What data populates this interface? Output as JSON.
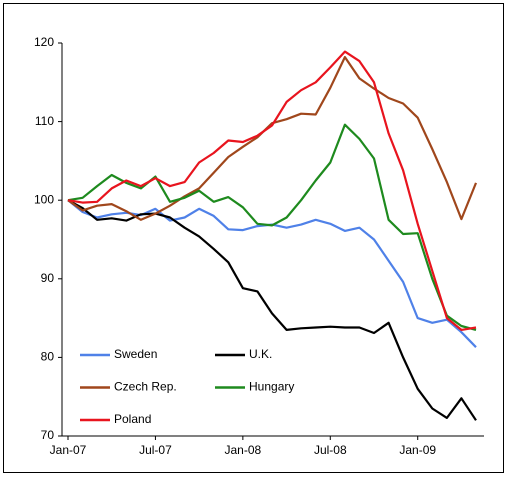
{
  "chart_data": {
    "type": "line",
    "categories": [
      "Jan-07",
      null,
      null,
      null,
      null,
      null,
      "Jul-07",
      null,
      null,
      null,
      null,
      null,
      "Jan-08",
      null,
      null,
      null,
      null,
      null,
      "Jul-08",
      null,
      null,
      null,
      null,
      null,
      "Jan-09",
      null,
      null,
      null,
      null
    ],
    "series": [
      {
        "name": "Sweden",
        "color": "#4f81e8",
        "values": [
          100,
          98.5,
          97.8,
          98.2,
          98.4,
          98.1,
          98.9,
          97.4,
          97.8,
          98.9,
          98,
          96.3,
          96.2,
          96.7,
          96.9,
          96.5,
          96.9,
          97.5,
          97,
          96.1,
          96.5,
          95,
          92.3,
          89.6,
          85,
          84.4,
          84.8,
          83.2,
          81.3
        ]
      },
      {
        "name": "U.K.",
        "color": "#000000",
        "values": [
          100,
          99,
          97.5,
          97.7,
          97.4,
          98.2,
          98.3,
          97.8,
          96.5,
          95.4,
          93.8,
          92.1,
          88.8,
          88.4,
          85.6,
          83.5,
          83.7,
          83.8,
          83.9,
          83.8,
          83.8,
          83.1,
          84.4,
          80,
          76,
          73.5,
          72.3,
          74.8,
          72
        ]
      },
      {
        "name": "Czech Rep.",
        "color": "#a0471c",
        "values": [
          100,
          98.7,
          99.3,
          99.5,
          98.6,
          97.5,
          98.3,
          99.3,
          100.5,
          101.5,
          103.5,
          105.5,
          106.8,
          108,
          109.8,
          110.3,
          111,
          110.9,
          114.3,
          118.2,
          115.5,
          114.2,
          113,
          112.3,
          110.5,
          106.5,
          102.3,
          97.6,
          102.2
        ]
      },
      {
        "name": "Hungary",
        "color": "#1e8a1e",
        "values": [
          100,
          100.3,
          101.8,
          103.2,
          102.2,
          101.5,
          103,
          99.8,
          100.3,
          101.2,
          99.8,
          100.4,
          99.1,
          97,
          96.8,
          97.8,
          100,
          102.5,
          104.8,
          109.6,
          107.8,
          105.3,
          97.5,
          95.7,
          95.8,
          90,
          85.3,
          84,
          83.5
        ]
      },
      {
        "name": "Poland",
        "color": "#e8141e",
        "values": [
          100,
          99.7,
          99.8,
          101.5,
          102.5,
          101.8,
          102.8,
          101.8,
          102.3,
          104.8,
          106,
          107.6,
          107.4,
          108.2,
          109.5,
          112.5,
          114,
          115,
          116.9,
          118.9,
          117.7,
          115,
          108.5,
          103.8,
          97,
          91,
          85,
          83.5,
          83.8
        ]
      }
    ],
    "ylim": [
      70,
      120
    ],
    "yticks": [
      70,
      80,
      90,
      100,
      110,
      120
    ],
    "legend": "lower left"
  }
}
